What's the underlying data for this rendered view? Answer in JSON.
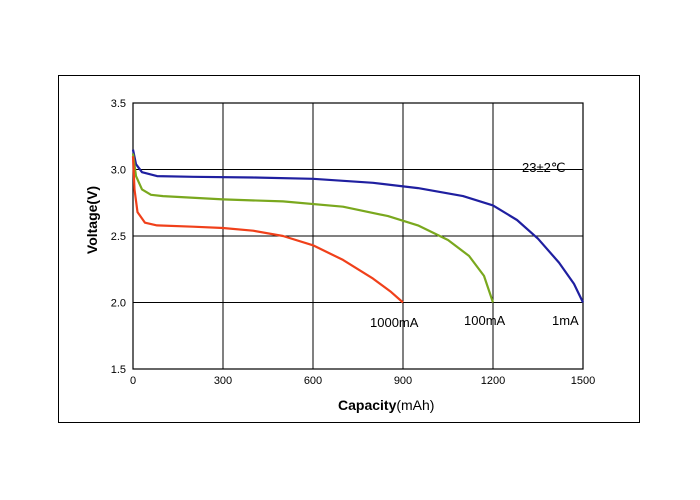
{
  "chart_data": {
    "type": "line",
    "xlabel_bold": "Capacity",
    "xlabel_unit": "(mAh)",
    "ylabel": "Voltage(V)",
    "xlim": [
      0,
      1500
    ],
    "ylim": [
      1.5,
      3.5
    ],
    "xticks": [
      "0",
      "300",
      "600",
      "900",
      "1200",
      "1500"
    ],
    "yticks": [
      "1.5",
      "2.0",
      "2.5",
      "3.0",
      "3.5"
    ],
    "grid": true,
    "annotation": "23±2℃",
    "series": [
      {
        "name": "1mA",
        "color": "#1f1fa0",
        "points": [
          [
            0,
            3.15
          ],
          [
            10,
            3.04
          ],
          [
            30,
            2.98
          ],
          [
            80,
            2.95
          ],
          [
            200,
            2.945
          ],
          [
            400,
            2.94
          ],
          [
            600,
            2.93
          ],
          [
            800,
            2.9
          ],
          [
            950,
            2.86
          ],
          [
            1100,
            2.8
          ],
          [
            1200,
            2.73
          ],
          [
            1280,
            2.62
          ],
          [
            1350,
            2.48
          ],
          [
            1420,
            2.3
          ],
          [
            1470,
            2.14
          ],
          [
            1500,
            2.0
          ]
        ]
      },
      {
        "name": "100mA",
        "color": "#7aa81e",
        "points": [
          [
            0,
            3.12
          ],
          [
            10,
            2.95
          ],
          [
            30,
            2.85
          ],
          [
            60,
            2.81
          ],
          [
            100,
            2.8
          ],
          [
            300,
            2.775
          ],
          [
            500,
            2.76
          ],
          [
            700,
            2.72
          ],
          [
            850,
            2.65
          ],
          [
            950,
            2.58
          ],
          [
            1050,
            2.47
          ],
          [
            1120,
            2.35
          ],
          [
            1170,
            2.2
          ],
          [
            1200,
            2.0
          ]
        ]
      },
      {
        "name": "1000mA",
        "color": "#f0401a",
        "points": [
          [
            0,
            3.1
          ],
          [
            5,
            2.85
          ],
          [
            15,
            2.68
          ],
          [
            40,
            2.6
          ],
          [
            80,
            2.58
          ],
          [
            200,
            2.57
          ],
          [
            300,
            2.56
          ],
          [
            400,
            2.54
          ],
          [
            500,
            2.5
          ],
          [
            600,
            2.43
          ],
          [
            700,
            2.32
          ],
          [
            800,
            2.18
          ],
          [
            860,
            2.08
          ],
          [
            900,
            2.0
          ]
        ]
      }
    ],
    "curve_labels": [
      "1000mA",
      "100mA",
      "1mA"
    ]
  }
}
